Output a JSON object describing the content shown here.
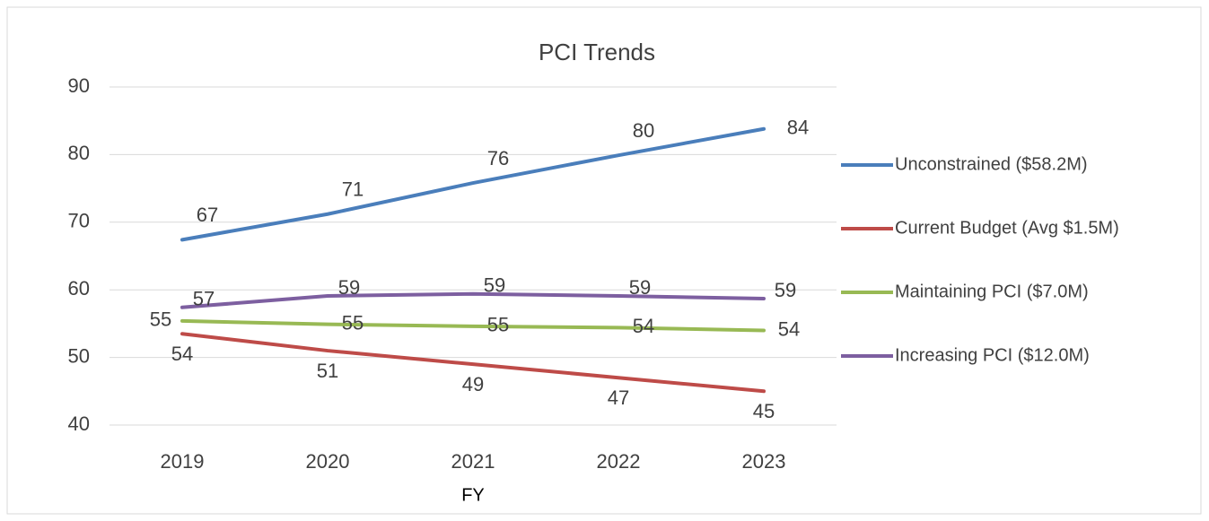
{
  "chart_data": {
    "type": "line",
    "title": "PCI Trends",
    "x_label": "FY",
    "categories": [
      "2019",
      "2020",
      "2021",
      "2022",
      "2023"
    ],
    "series": [
      {
        "name": "Unconstrained ($58.2M)",
        "color": "#4a7ebb",
        "values": [
          67.4,
          71.2,
          75.8,
          79.9,
          83.8
        ],
        "value_labels": [
          "67",
          "71",
          "76",
          "80",
          "84"
        ]
      },
      {
        "name": "Current Budget (Avg $1.5M)",
        "color": "#be4b48",
        "values": [
          53.5,
          51.0,
          49.0,
          47.0,
          45.0
        ],
        "value_labels": [
          "54",
          "51",
          "49",
          "47",
          "45"
        ]
      },
      {
        "name": "Maintaining PCI ($7.0M)",
        "color": "#98b954",
        "values": [
          55.4,
          54.9,
          54.6,
          54.4,
          54.0
        ],
        "value_labels": [
          "55",
          "55",
          "55",
          "54",
          "54"
        ]
      },
      {
        "name": "Increasing PCI ($12.0M)",
        "color": "#7d5fa0",
        "values": [
          57.4,
          59.1,
          59.4,
          59.1,
          58.7
        ],
        "value_labels": [
          "57",
          "59",
          "59",
          "59",
          "59"
        ]
      }
    ],
    "ylim": [
      40,
      90
    ],
    "yticks": [
      40,
      50,
      60,
      70,
      80,
      90
    ],
    "grid": true,
    "legend": "right"
  }
}
